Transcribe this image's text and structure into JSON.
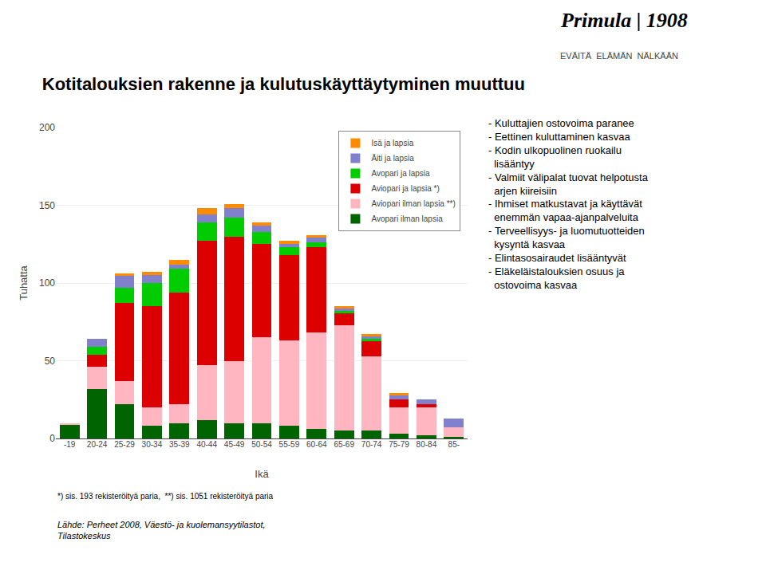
{
  "chart_data": {
    "type": "bar",
    "stacked": true,
    "title": "Kotitalouksien rakenne ja kulutuskäyttäytyminen muuttuu",
    "xlabel": "Ikä",
    "ylabel": "Tuhatta",
    "categories": [
      "-19",
      "20-24",
      "25-29",
      "30-34",
      "35-39",
      "40-44",
      "45-49",
      "50-54",
      "55-59",
      "60-64",
      "65-69",
      "70-74",
      "75-79",
      "80-84",
      "85-"
    ],
    "series": [
      {
        "name": "Avopari ilman lapsia",
        "color": "#006400",
        "values": [
          9,
          32,
          22,
          8,
          10,
          12,
          10,
          10,
          8,
          6,
          5,
          5,
          3,
          2,
          1
        ]
      },
      {
        "name": "Aviopari ilman lapsia **)",
        "color": "#FFB6C1",
        "values": [
          1,
          14,
          15,
          12,
          12,
          35,
          40,
          55,
          55,
          62,
          68,
          48,
          17,
          18,
          6
        ]
      },
      {
        "name": "Aviopari ja lapsia *)",
        "color": "#DD0000",
        "values": [
          0,
          8,
          50,
          65,
          72,
          80,
          80,
          60,
          55,
          55,
          8,
          10,
          5,
          2,
          0
        ]
      },
      {
        "name": "Avopari ja lapsia",
        "color": "#00CC00",
        "values": [
          0,
          5,
          10,
          15,
          15,
          12,
          12,
          8,
          5,
          3,
          1,
          1,
          0,
          0,
          0
        ]
      },
      {
        "name": "Äiti ja lapsia",
        "color": "#8080CC",
        "values": [
          0,
          5,
          8,
          5,
          3,
          5,
          6,
          4,
          2,
          3,
          2,
          2,
          3,
          3,
          6
        ]
      },
      {
        "name": "Isä ja lapsia",
        "color": "#FF8C00",
        "values": [
          0,
          0,
          1,
          2,
          3,
          4,
          3,
          2,
          2,
          2,
          1,
          1,
          1,
          0,
          0
        ]
      }
    ],
    "ylim": [
      0,
      200
    ],
    "yticks": [
      0,
      50,
      100,
      150,
      200
    ],
    "grid": true,
    "legend": "upper right",
    "annotations": [
      "*) sis. 193 rekisteröityä paria,  **) sis. 1051 rekisteröityä paria",
      "Lähde: Perheet 2008, Väestö- ja kuolemansyytilastot,\nTilastokeskus",
      "- Kuluttajien ostovoima paranee\n- Eettinen kuluttaminen kasvaa\n- Kodin ulkopuolinen ruokailu\n  lisääntyy\n- Valmiit välipalat tuovat helpotusta\n  arjen kiireisiin\n- Ihmiset matkustavat ja käyttävät\n  enemmän vapaa-ajanpalveluita\n- Terveellisyys- ja luomutuotteiden\n  kysyntä kasvaa\n- Elintasosairaudet lisääntyvät\n- Eläkeläistalouksien osuus ja\n  ostovoima kasvaa",
      "Primula | 1908",
      "EVÄITÄ  ELÄMÄN  NÄLKÄÄN"
    ]
  }
}
